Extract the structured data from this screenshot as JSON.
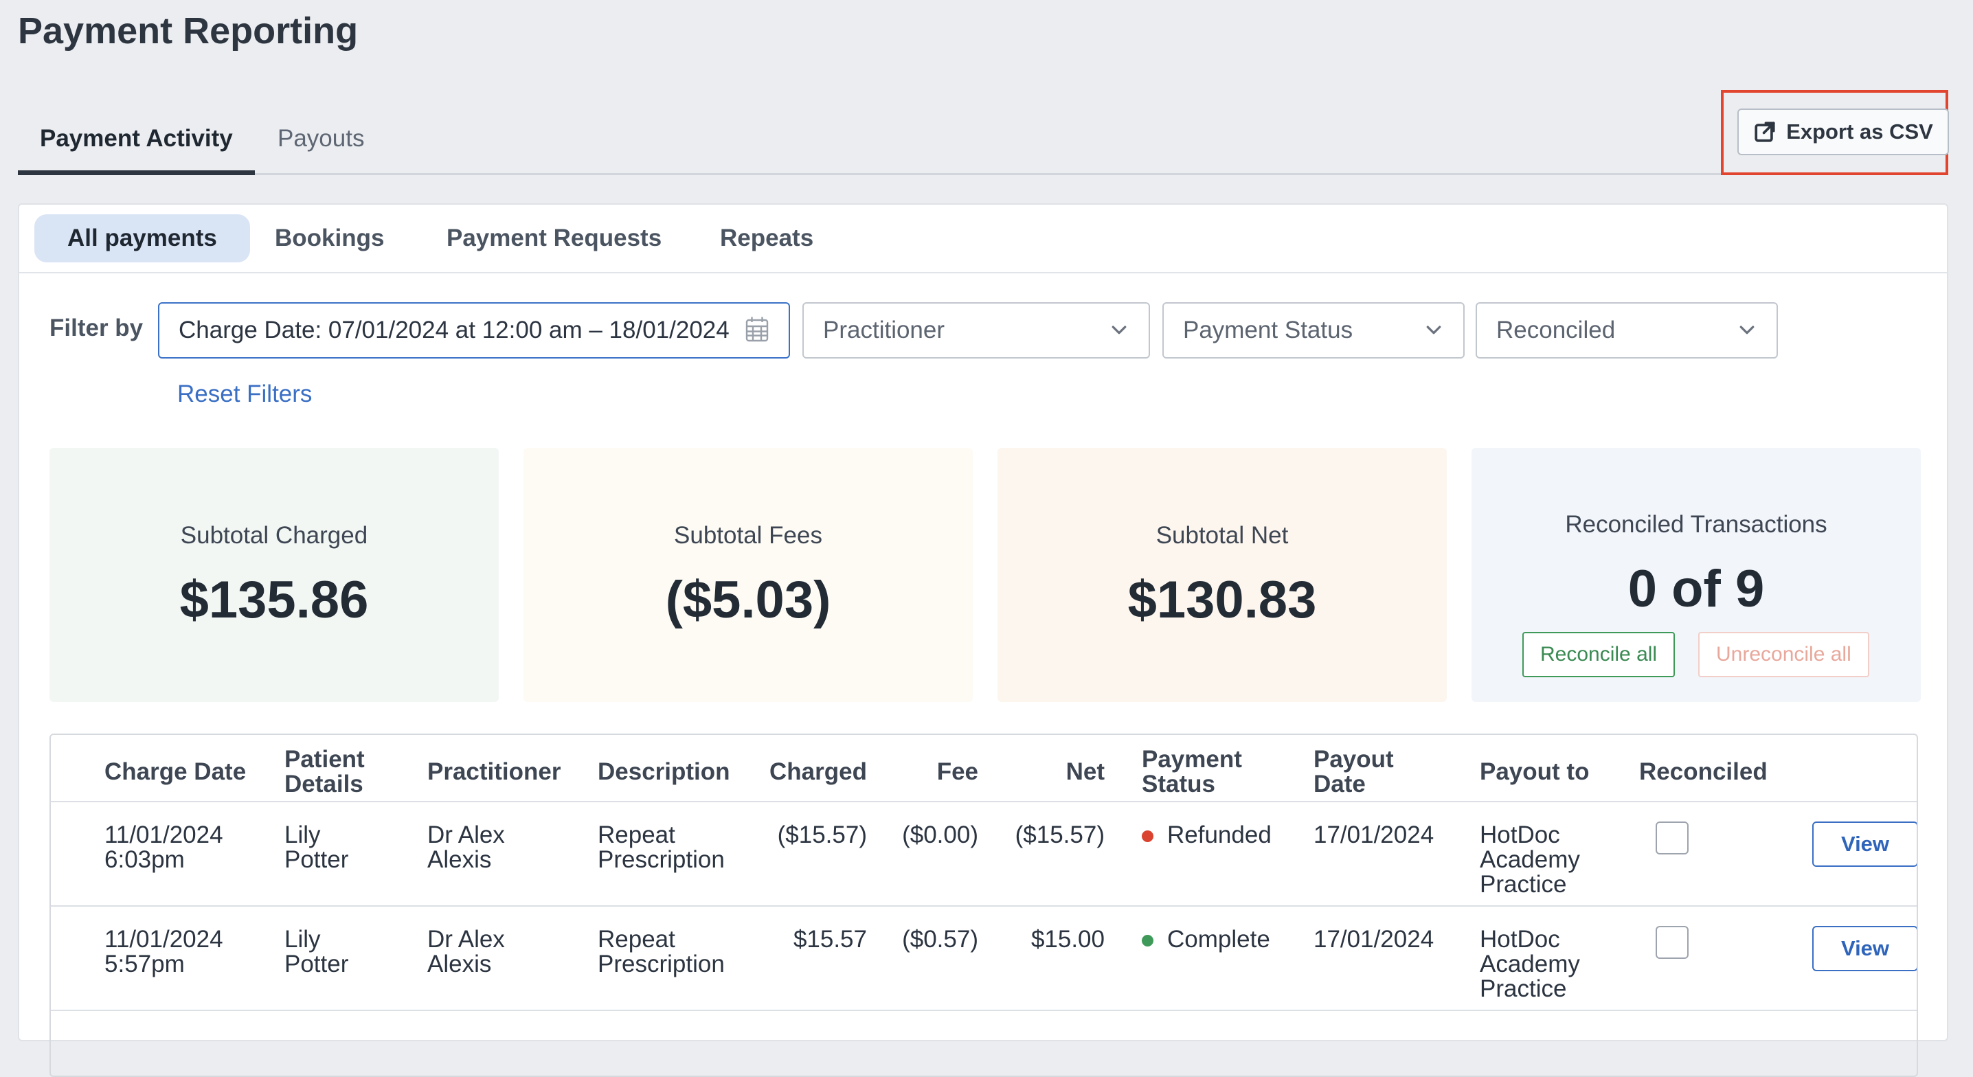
{
  "page_title": "Payment Reporting",
  "main_tabs": [
    {
      "label": "Payment Activity",
      "active": true
    },
    {
      "label": "Payouts",
      "active": false
    }
  ],
  "export_button": {
    "label": "Export as CSV",
    "icon": "external-link-icon"
  },
  "sub_tabs": [
    {
      "label": "All payments",
      "active": true
    },
    {
      "label": "Bookings",
      "active": false
    },
    {
      "label": "Payment Requests",
      "active": false
    },
    {
      "label": "Repeats",
      "active": false
    }
  ],
  "filters": {
    "label": "Filter by",
    "date_range": "Charge Date: 07/01/2024 at 12:00 am – 18/01/2024",
    "practitioner": "Practitioner",
    "payment_status": "Payment Status",
    "reconciled": "Reconciled",
    "reset": "Reset Filters"
  },
  "stats": {
    "subtotal_charged": {
      "label": "Subtotal Charged",
      "value": "$135.86"
    },
    "subtotal_fees": {
      "label": "Subtotal Fees",
      "value": "($5.03)"
    },
    "subtotal_net": {
      "label": "Subtotal Net",
      "value": "$130.83"
    },
    "reconciled": {
      "label": "Reconciled Transactions",
      "value": "0 of 9",
      "reconcile_all": "Reconcile all",
      "unreconcile_all": "Unreconcile all"
    }
  },
  "table": {
    "columns": {
      "charge_date": "Charge Date",
      "patient_l1": "Patient",
      "patient_l2": "Details",
      "practitioner": "Practitioner",
      "description": "Description",
      "charged": "Charged",
      "fee": "Fee",
      "net": "Net",
      "status_l1": "Payment",
      "status_l2": "Status",
      "payout_l1": "Payout",
      "payout_l2": "Date",
      "payout_to": "Payout to",
      "reconciled": "Reconciled"
    },
    "rows": [
      {
        "date": "11/01/2024",
        "time": "6:03pm",
        "patient_first": "Lily",
        "patient_last": "Potter",
        "prac_l1": "Dr Alex",
        "prac_l2": "Alexis",
        "desc_l1": "Repeat",
        "desc_l2": "Prescription",
        "charged": "($15.57)",
        "fee": "($0.00)",
        "net": "($15.57)",
        "status": "Refunded",
        "status_color": "#d9432f",
        "payout_date": "17/01/2024",
        "payout_l1": "HotDoc",
        "payout_l2": "Academy",
        "payout_l3": "Practice",
        "view": "View"
      },
      {
        "date": "11/01/2024",
        "time": "5:57pm",
        "patient_first": "Lily",
        "patient_last": "Potter",
        "prac_l1": "Dr Alex",
        "prac_l2": "Alexis",
        "desc_l1": "Repeat",
        "desc_l2": "Prescription",
        "charged": "$15.57",
        "fee": "($0.57)",
        "net": "$15.00",
        "status": "Complete",
        "status_color": "#3f9a5a",
        "payout_date": "17/01/2024",
        "payout_l1": "HotDoc",
        "payout_l2": "Academy",
        "payout_l3": "Practice",
        "view": "View"
      }
    ]
  },
  "colors": {
    "accent": "#3a6fc4",
    "highlight": "#e2452f",
    "reconcile": "#3f9a5a",
    "unreconcile": "#e8a89c"
  }
}
